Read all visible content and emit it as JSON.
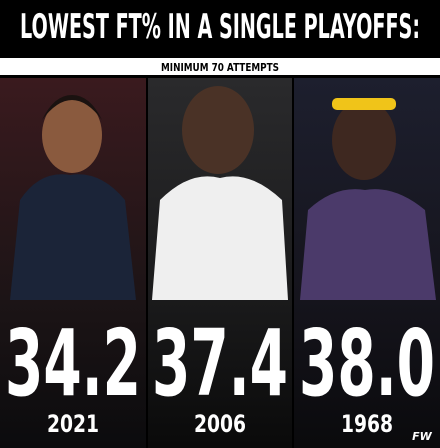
{
  "header": {
    "title": "LOWEST FT% IN A SINGLE PLAYOFFS:",
    "subtitle": "MINIMUM 70 ATTEMPTS"
  },
  "panels": [
    {
      "value": "34.2",
      "year": "2021"
    },
    {
      "value": "37.4",
      "year": "2006"
    },
    {
      "value": "38.0",
      "year": "1968"
    }
  ],
  "logo": "FW"
}
